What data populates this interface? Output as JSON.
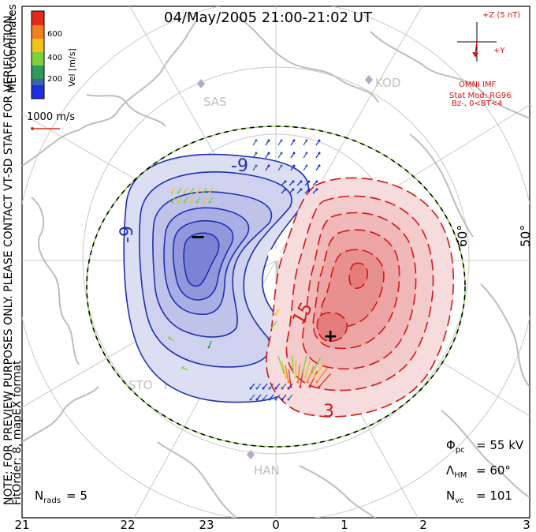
{
  "title": "04/May/2005 21:00-21:02 UT",
  "side_note": "NOTE: FOR PREVIEW PURPOSES ONLY. PLEASE CONTACT VT-SD STAFF FOR VERIFICATION.",
  "fit_info": "FitOrder: 8, mapEX format",
  "coord_label": "MLT coordinates",
  "colorbar": {
    "label": "Vel [m/s]",
    "ticks": [
      "600",
      "400",
      "200"
    ],
    "colors": [
      "#1e2fe0",
      "#3a66a8",
      "#2f9a5a",
      "#7fd13b",
      "#f0c419",
      "#f08020",
      "#e42a1c"
    ]
  },
  "velocity_scale": "1000 m/s",
  "imf": {
    "z_label": "+Z (5 nT)",
    "y_label": "+Y",
    "source": "OMNI IMF",
    "model": "Stat Mod: RG96",
    "condition": "Bz-, 0<BT<4"
  },
  "stations": [
    "SAS",
    "KOD",
    "STO",
    "PYK",
    "HAN"
  ],
  "latitude_labels": [
    "60°",
    "50°"
  ],
  "contour_labels": {
    "negative": [
      "-9",
      "-9"
    ],
    "positive": [
      "15",
      "3"
    ]
  },
  "cell_markers": {
    "minimum": "−",
    "maximum": "+"
  },
  "stats": {
    "potential": "= 55 kV",
    "hm_boundary": "= 60°",
    "vectors": "= 101",
    "radars": "= 5"
  },
  "mlt_ticks": [
    "21",
    "22",
    "23",
    "0",
    "1",
    "2",
    "3"
  ],
  "colors": {
    "negative_contour": "#1f2fb0",
    "positive_contour": "#d01818",
    "text_red": "#e01010",
    "grid": "#c8c8c8",
    "coast": "#bdbdbd",
    "station": "#b9a8c8"
  }
}
